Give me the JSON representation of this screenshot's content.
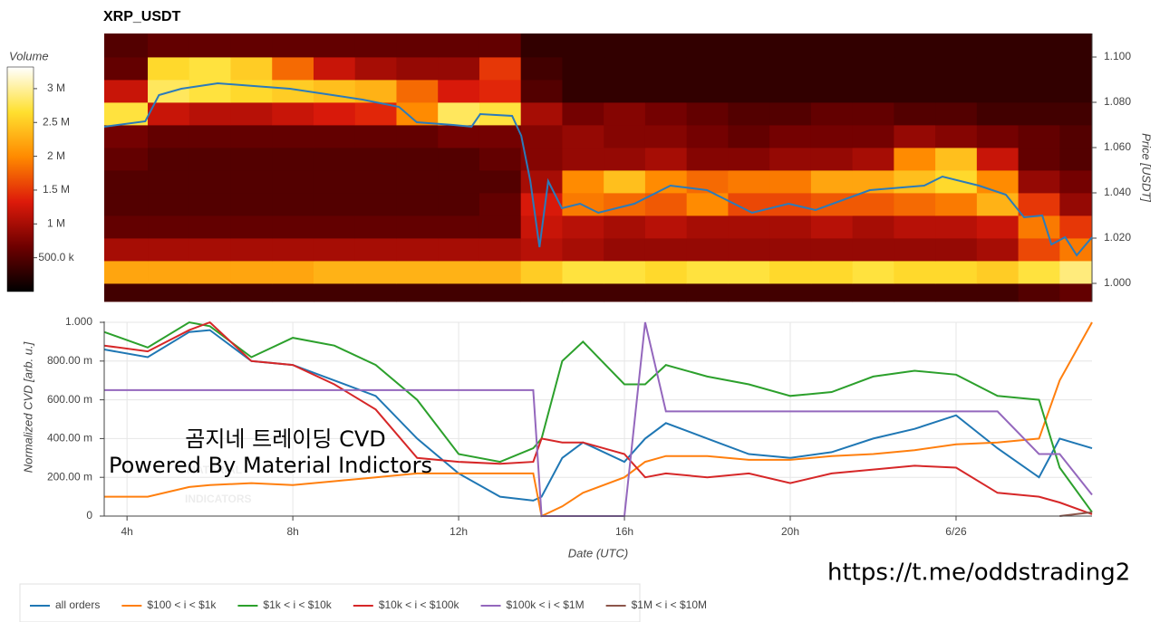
{
  "chart_data": [
    {
      "type": "heatmap",
      "title": "XRP_USDT",
      "y_label": "Price [USDT]",
      "colorbar_label": "Volume",
      "xlim": [
        3.45,
        27.28
      ],
      "ylim": [
        0.992,
        1.1104
      ],
      "yticks": [
        {
          "value": 1.0,
          "label": "1.000"
        },
        {
          "value": 1.02,
          "label": "1.020"
        },
        {
          "value": 1.04,
          "label": "1.040"
        },
        {
          "value": 1.06,
          "label": "1.060"
        },
        {
          "value": 1.08,
          "label": "1.080"
        },
        {
          "value": 1.1,
          "label": "1.100"
        }
      ],
      "zlim": [
        0,
        3.32
      ],
      "zticks": [
        {
          "value": 0.5,
          "label": "500.0 k"
        },
        {
          "value": 1,
          "label": "1 M"
        },
        {
          "value": 1.5,
          "label": "1.5 M"
        },
        {
          "value": 2,
          "label": "2 M"
        },
        {
          "value": 2.5,
          "label": "2.5 M"
        },
        {
          "value": 3,
          "label": "3 M"
        }
      ],
      "colorscale": [
        "#000000",
        "#6e0000",
        "#dd1a0a",
        "#ff8a00",
        "#ffe030",
        "#ffffff"
      ],
      "xbins": [
        3.45,
        4.5,
        5.5,
        6.5,
        7.5,
        8.5,
        9.5,
        10.5,
        11.5,
        12.5,
        13.5,
        14.5,
        15.5,
        16.5,
        17.5,
        18.5,
        19.5,
        20.5,
        21.5,
        22.5,
        23.5,
        24.5,
        25.5,
        26.5,
        27.28
      ],
      "ybins": [
        0.992,
        1.0,
        1.01,
        1.02,
        1.03,
        1.04,
        1.05,
        1.06,
        1.07,
        1.08,
        1.09,
        1.1,
        1.1104
      ],
      "z": [
        [
          0.4,
          0.4,
          0.4,
          0.4,
          0.4,
          0.4,
          0.4,
          0.4,
          0.4,
          0.4,
          0.4,
          0.4,
          0.4,
          0.4,
          0.4,
          0.4,
          0.4,
          0.4,
          0.4,
          0.4,
          0.4,
          0.4,
          0.5,
          0.6
        ],
        [
          2.2,
          2.2,
          2.2,
          2.2,
          2.2,
          2.3,
          2.3,
          2.3,
          2.3,
          2.3,
          2.5,
          2.7,
          2.7,
          2.6,
          2.7,
          2.7,
          2.6,
          2.6,
          2.7,
          2.6,
          2.6,
          2.5,
          2.7,
          2.9
        ],
        [
          1.0,
          1.0,
          1.0,
          1.0,
          1.0,
          1.0,
          1.0,
          1.0,
          1.0,
          1.0,
          1.1,
          1.0,
          0.9,
          0.9,
          0.9,
          0.9,
          0.9,
          0.9,
          0.9,
          0.9,
          0.9,
          1.0,
          1.6,
          1.9
        ],
        [
          0.6,
          0.6,
          0.6,
          0.6,
          0.6,
          0.6,
          0.6,
          0.6,
          0.6,
          0.6,
          1.2,
          1.1,
          1.0,
          1.1,
          1.0,
          1.0,
          1.0,
          1.1,
          1.0,
          1.1,
          1.1,
          1.2,
          1.9,
          1.5
        ],
        [
          0.5,
          0.5,
          0.5,
          0.5,
          0.5,
          0.5,
          0.5,
          0.5,
          0.5,
          0.6,
          1.3,
          1.9,
          1.8,
          1.7,
          2.0,
          1.6,
          1.6,
          1.7,
          1.7,
          1.8,
          1.9,
          2.3,
          1.5,
          0.9
        ],
        [
          0.5,
          0.5,
          0.5,
          0.5,
          0.5,
          0.5,
          0.5,
          0.5,
          0.5,
          0.5,
          1.0,
          2.0,
          2.4,
          2.0,
          1.8,
          1.9,
          1.9,
          2.2,
          2.2,
          2.4,
          2.6,
          2.0,
          0.9,
          0.7
        ],
        [
          0.6,
          0.5,
          0.5,
          0.5,
          0.5,
          0.5,
          0.5,
          0.5,
          0.5,
          0.6,
          0.8,
          0.9,
          0.9,
          1.0,
          0.8,
          0.8,
          0.9,
          0.9,
          1.0,
          2.0,
          2.4,
          1.2,
          0.6,
          0.5
        ],
        [
          0.7,
          0.6,
          0.6,
          0.6,
          0.6,
          0.6,
          0.6,
          0.6,
          0.7,
          0.7,
          0.8,
          0.9,
          0.8,
          0.8,
          0.7,
          0.6,
          0.7,
          0.7,
          0.7,
          0.9,
          0.8,
          0.7,
          0.6,
          0.5
        ],
        [
          2.7,
          1.2,
          1.1,
          1.1,
          1.2,
          1.3,
          1.4,
          2.0,
          2.8,
          2.7,
          1.0,
          0.7,
          0.8,
          0.7,
          0.6,
          0.5,
          0.5,
          0.6,
          0.6,
          0.5,
          0.5,
          0.4,
          0.4,
          0.4
        ],
        [
          1.2,
          2.8,
          2.7,
          2.6,
          2.5,
          2.4,
          2.3,
          1.8,
          1.3,
          1.4,
          0.5,
          0.3,
          0.3,
          0.3,
          0.3,
          0.3,
          0.3,
          0.3,
          0.3,
          0.3,
          0.3,
          0.3,
          0.3,
          0.3
        ],
        [
          0.6,
          2.6,
          2.7,
          2.5,
          1.8,
          1.2,
          1.0,
          0.9,
          0.9,
          1.5,
          0.4,
          0.3,
          0.3,
          0.3,
          0.3,
          0.3,
          0.3,
          0.3,
          0.3,
          0.3,
          0.3,
          0.3,
          0.3,
          0.3
        ],
        [
          0.5,
          0.6,
          0.6,
          0.6,
          0.6,
          0.6,
          0.6,
          0.6,
          0.6,
          0.6,
          0.3,
          0.3,
          0.3,
          0.3,
          0.3,
          0.3,
          0.3,
          0.3,
          0.3,
          0.3,
          0.3,
          0.3,
          0.3,
          0.3
        ]
      ],
      "price_line": {
        "color": "#2b7bba",
        "x": [
          3.45,
          4.44,
          4.77,
          5.31,
          6.19,
          7.06,
          7.93,
          8.81,
          9.68,
          10.56,
          10.99,
          11.87,
          12.31,
          12.52,
          13.29,
          13.51,
          13.73,
          13.95,
          14.16,
          14.49,
          14.93,
          15.37,
          16.24,
          17.11,
          17.99,
          19.08,
          19.96,
          20.61,
          21.92,
          23.23,
          23.67,
          24.55,
          25.2,
          25.64,
          26.08,
          26.3,
          26.63,
          26.91,
          27.28
        ],
        "values": [
          1.0692,
          1.0716,
          1.0832,
          1.086,
          1.0884,
          1.0872,
          1.086,
          1.0836,
          1.0812,
          1.078,
          1.0712,
          1.07,
          1.0692,
          1.0748,
          1.074,
          1.0652,
          1.0452,
          1.016,
          1.0452,
          1.0332,
          1.0352,
          1.0312,
          1.0352,
          1.0432,
          1.0412,
          1.0312,
          1.0352,
          1.0324,
          1.0412,
          1.0432,
          1.0472,
          1.0432,
          1.0392,
          1.0292,
          1.03,
          1.0172,
          1.0204,
          1.0124,
          1.0204
        ]
      }
    },
    {
      "type": "line",
      "x_label": "Date (UTC)",
      "y_label": "Normalized CVD [arb. u.]",
      "xlim": [
        3.45,
        27.28
      ],
      "ylim": [
        0,
        1
      ],
      "xticks": [
        {
          "value": 4,
          "label": "4h"
        },
        {
          "value": 8,
          "label": "8h"
        },
        {
          "value": 12,
          "label": "12h"
        },
        {
          "value": 16,
          "label": "16h"
        },
        {
          "value": 20,
          "label": "20h"
        },
        {
          "value": 24,
          "label": "6/26"
        }
      ],
      "yticks": [
        0,
        {
          "value": 0.2,
          "label": "200.00 m"
        },
        {
          "value": 0.4,
          "label": "400.00 m"
        },
        {
          "value": 0.6,
          "label": "600.00 m"
        },
        {
          "value": 0.8,
          "label": "800.00 m"
        },
        {
          "value": 1,
          "label": "1.000"
        }
      ],
      "grid": true,
      "legend": "bottom-left",
      "x": [
        3.45,
        4.5,
        5.5,
        6,
        7,
        8,
        9,
        10,
        11,
        12,
        13,
        13.8,
        14,
        14.5,
        15,
        16,
        16.5,
        17,
        18,
        19,
        20,
        21,
        22,
        23,
        24,
        25,
        26,
        26.5,
        27.28
      ],
      "series": [
        {
          "name": "all orders",
          "color": "#1f77b4",
          "values": [
            0.86,
            0.82,
            0.95,
            0.96,
            0.8,
            0.78,
            0.7,
            0.62,
            0.4,
            0.22,
            0.1,
            0.08,
            0.1,
            0.3,
            0.38,
            0.28,
            0.4,
            0.48,
            0.4,
            0.32,
            0.3,
            0.33,
            0.4,
            0.45,
            0.52,
            0.35,
            0.2,
            0.4,
            0.35
          ]
        },
        {
          "name": "$100 < i < $1k",
          "color": "#ff7f0e",
          "values": [
            0.1,
            0.1,
            0.15,
            0.16,
            0.17,
            0.16,
            0.18,
            0.2,
            0.22,
            0.22,
            0.22,
            0.22,
            0.0,
            0.05,
            0.12,
            0.2,
            0.28,
            0.31,
            0.31,
            0.29,
            0.29,
            0.31,
            0.32,
            0.34,
            0.37,
            0.38,
            0.4,
            0.7,
            1.0
          ]
        },
        {
          "name": "$1k < i < $10k",
          "color": "#2ca02c",
          "values": [
            0.95,
            0.87,
            1.0,
            0.98,
            0.82,
            0.92,
            0.88,
            0.78,
            0.6,
            0.32,
            0.28,
            0.35,
            0.4,
            0.8,
            0.9,
            0.68,
            0.68,
            0.78,
            0.72,
            0.68,
            0.62,
            0.64,
            0.72,
            0.75,
            0.73,
            0.62,
            0.6,
            0.25,
            0.02
          ]
        },
        {
          "name": "$10k < i < $100k",
          "color": "#d62728",
          "values": [
            0.88,
            0.85,
            0.96,
            1.0,
            0.8,
            0.78,
            0.68,
            0.55,
            0.3,
            0.28,
            0.27,
            0.28,
            0.4,
            0.38,
            0.38,
            0.32,
            0.2,
            0.22,
            0.2,
            0.22,
            0.17,
            0.22,
            0.24,
            0.26,
            0.25,
            0.12,
            0.1,
            0.07,
            0.01
          ]
        },
        {
          "name": "$100k < i < $1M",
          "color": "#9467bd",
          "values": [
            0.65,
            0.65,
            0.65,
            0.65,
            0.65,
            0.65,
            0.65,
            0.65,
            0.65,
            0.65,
            0.65,
            0.65,
            0.0,
            0.0,
            0.0,
            0.0,
            1.0,
            0.54,
            0.54,
            0.54,
            0.54,
            0.54,
            0.54,
            0.54,
            0.54,
            0.54,
            0.32,
            0.32,
            0.11
          ]
        },
        {
          "name": "$1M < i < $10M",
          "color": "#8c564b",
          "values": [
            null,
            null,
            null,
            null,
            null,
            null,
            null,
            null,
            null,
            null,
            null,
            null,
            null,
            null,
            null,
            null,
            null,
            null,
            null,
            null,
            null,
            null,
            null,
            null,
            null,
            null,
            null,
            0.0,
            0.02
          ]
        }
      ]
    }
  ],
  "overlay": {
    "caption": "곰지네 트레이딩 CVD",
    "powered_by": "Powered By Material Indictors",
    "watermark_top": "MATERIAL",
    "watermark_bottom": "INDICATORS",
    "link": "https://t.me/oddstrading2"
  }
}
